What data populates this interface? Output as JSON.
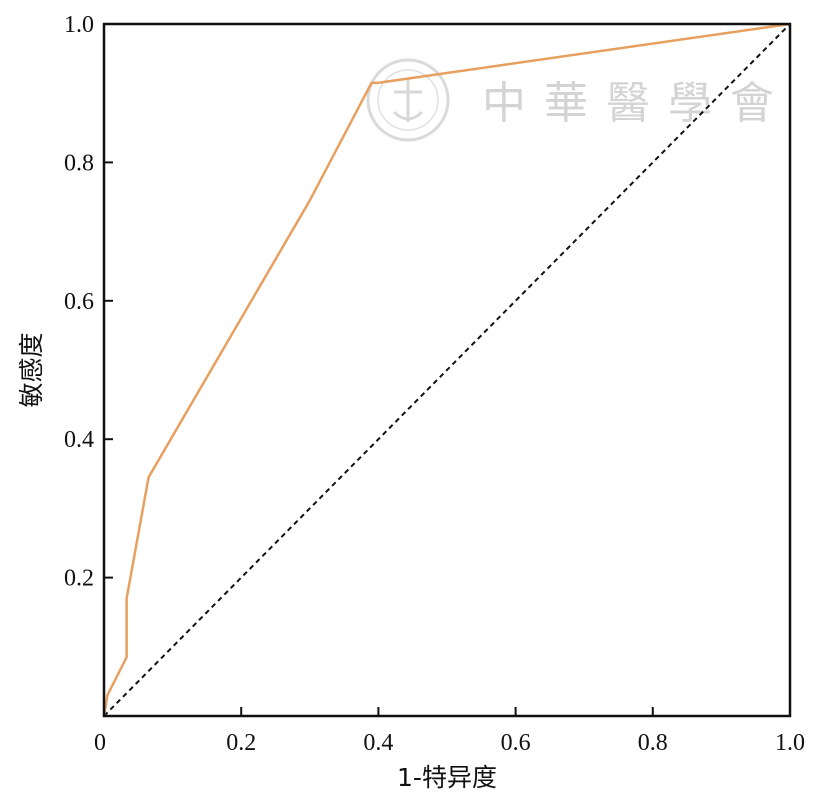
{
  "chart_data": {
    "type": "line",
    "xlabel": "1-特异度",
    "ylabel": "敏感度",
    "xlim": [
      0,
      1
    ],
    "ylim": [
      0,
      1
    ],
    "x_ticks": [
      "0",
      "0.2",
      "0.4",
      "0.6",
      "0.8",
      "1.0"
    ],
    "x_tick_values": [
      0,
      0.2,
      0.4,
      0.6,
      0.8,
      1.0
    ],
    "y_ticks": [
      "0.2",
      "0.4",
      "0.6",
      "0.8",
      "1.0"
    ],
    "y_tick_values": [
      0.2,
      0.4,
      0.6,
      0.8,
      1.0
    ],
    "grid": false,
    "series": [
      {
        "color": "#e8a060",
        "style": "solid",
        "x": [
          0,
          0.005,
          0.033,
          0.033,
          0.065,
          0.3,
          0.39,
          0.4,
          1.0
        ],
        "y": [
          0,
          0.03,
          0.085,
          0.17,
          0.345,
          0.745,
          0.915,
          0.915,
          1.0
        ]
      },
      {
        "color": "#111111",
        "style": "dashed",
        "x": [
          0,
          1
        ],
        "y": [
          0,
          1
        ]
      }
    ]
  },
  "watermark": {
    "text": "中華醫學會",
    "color": "#d0d0d0"
  }
}
